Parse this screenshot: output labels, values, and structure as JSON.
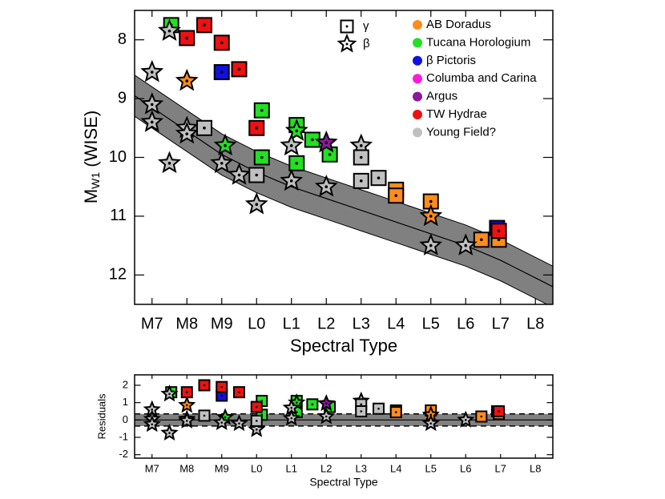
{
  "chart_data": [
    {
      "type": "scatter",
      "xlabel": "Spectral Type",
      "ylabel": {
        "main": "M",
        "sub": "W1",
        "rest": " (WISE)"
      },
      "xlim": [
        6.5,
        18.5
      ],
      "ylim": [
        12.5,
        7.5
      ],
      "xticks": [
        {
          "value": 7,
          "label": "M7"
        },
        {
          "value": 8,
          "label": "M8"
        },
        {
          "value": 9,
          "label": "M9"
        },
        {
          "value": 10,
          "label": "L0"
        },
        {
          "value": 11,
          "label": "L1"
        },
        {
          "value": 12,
          "label": "L2"
        },
        {
          "value": 13,
          "label": "L3"
        },
        {
          "value": 14,
          "label": "L4"
        },
        {
          "value": 15,
          "label": "L5"
        },
        {
          "value": 16,
          "label": "L6"
        },
        {
          "value": 17,
          "label": "L7"
        },
        {
          "value": 18,
          "label": "L8"
        }
      ],
      "yticks": [
        8,
        9,
        10,
        11,
        12
      ],
      "shape_legend": [
        {
          "label": "γ",
          "shape": "square"
        },
        {
          "label": "β",
          "shape": "star"
        }
      ],
      "fit": {
        "x": [
          6.5,
          7,
          8,
          9,
          10,
          11,
          12,
          13,
          14,
          15,
          16,
          17,
          18,
          18.5
        ],
        "values": [
          8.95,
          9.15,
          9.55,
          9.95,
          10.25,
          10.5,
          10.7,
          10.9,
          11.1,
          11.3,
          11.5,
          11.75,
          12.05,
          12.2
        ],
        "halfwidth": 0.35,
        "color": "#808080"
      },
      "series": [
        {
          "name": "AB Doradus",
          "color": "#ff8c1a",
          "x": [
            8,
            14,
            14,
            15,
            15,
            16.45,
            16.95
          ],
          "values": [
            8.7,
            10.55,
            10.65,
            10.75,
            11.0,
            11.4,
            11.4
          ],
          "shapes": [
            "star",
            "square",
            "square",
            "square",
            "star",
            "square",
            "square"
          ]
        },
        {
          "name": "Tucana Horologium",
          "color": "#22e022",
          "x": [
            7.55,
            10.15,
            10.15,
            11.15,
            11.15,
            11.6,
            12.1,
            9.1,
            11.15
          ],
          "values": [
            7.75,
            9.2,
            10.0,
            9.45,
            10.1,
            9.7,
            9.95,
            9.8,
            9.55
          ],
          "shapes": [
            "square",
            "square",
            "square",
            "square",
            "square",
            "square",
            "square",
            "star",
            "star"
          ]
        },
        {
          "name": "β Pictoris",
          "color": "#1010e0",
          "x": [
            9,
            16.9
          ],
          "values": [
            8.55,
            11.2
          ],
          "shapes": [
            "square",
            "square"
          ]
        },
        {
          "name": "Columba and Carina",
          "color": "#ff1adb",
          "x": [],
          "values": [],
          "shapes": []
        },
        {
          "name": "Argus",
          "color": "#8a1a9a",
          "x": [
            12
          ],
          "values": [
            9.75
          ],
          "shapes": [
            "star"
          ]
        },
        {
          "name": "TW Hydrae",
          "color": "#ee1111",
          "x": [
            8,
            8.5,
            9,
            9.5,
            10,
            16.95
          ],
          "values": [
            7.97,
            7.75,
            8.05,
            8.5,
            9.5,
            11.25
          ],
          "shapes": [
            "square",
            "square",
            "square",
            "square",
            "square",
            "square"
          ]
        },
        {
          "name": "Young Field?",
          "color": "#c0c0c0",
          "x": [
            7,
            7,
            7,
            7.5,
            7.5,
            8,
            8,
            9,
            9.5,
            10,
            11,
            11,
            12,
            13,
            15,
            16,
            8.5,
            10,
            13,
            13,
            13.5
          ],
          "values": [
            8.55,
            9.1,
            9.4,
            7.85,
            10.1,
            9.5,
            9.6,
            10.1,
            10.3,
            10.8,
            9.8,
            10.4,
            10.5,
            9.8,
            11.5,
            11.5,
            9.5,
            10.3,
            10.0,
            10.4,
            10.35
          ],
          "shapes": [
            "star",
            "star",
            "star",
            "star",
            "star",
            "star",
            "star",
            "star",
            "star",
            "star",
            "star",
            "star",
            "star",
            "star",
            "star",
            "star",
            "square",
            "square",
            "square",
            "square",
            "square"
          ]
        }
      ]
    },
    {
      "type": "scatter",
      "xlabel": "Spectral Type",
      "ylabel": "Residuals",
      "xlim": [
        6.5,
        18.5
      ],
      "ylim": [
        -2.2,
        2.6
      ],
      "xticks": [
        {
          "value": 7,
          "label": "M7"
        },
        {
          "value": 8,
          "label": "M8"
        },
        {
          "value": 9,
          "label": "M9"
        },
        {
          "value": 10,
          "label": "L0"
        },
        {
          "value": 11,
          "label": "L1"
        },
        {
          "value": 12,
          "label": "L2"
        },
        {
          "value": 13,
          "label": "L3"
        },
        {
          "value": 14,
          "label": "L4"
        },
        {
          "value": 15,
          "label": "L5"
        },
        {
          "value": 16,
          "label": "L6"
        },
        {
          "value": 17,
          "label": "L7"
        },
        {
          "value": 18,
          "label": "L8"
        }
      ],
      "yticks": [
        -2,
        -1,
        0,
        1,
        2
      ],
      "band": {
        "center": 0,
        "halfwidth": 0.35,
        "color": "#808080"
      },
      "series": [
        {
          "color": "#ff8c1a",
          "x": [
            8,
            14,
            14,
            15,
            15,
            16.45,
            16.95
          ],
          "values": [
            0.85,
            0.55,
            0.45,
            0.55,
            0.3,
            0.2,
            0.35
          ],
          "shapes": [
            "star",
            "square",
            "square",
            "square",
            "star",
            "square",
            "square"
          ]
        },
        {
          "color": "#22e022",
          "x": [
            7.55,
            10.15,
            10.15,
            11.15,
            11.15,
            11.6,
            12.1,
            9.1,
            11.15
          ],
          "values": [
            1.6,
            1.1,
            0.3,
            1.1,
            0.45,
            0.9,
            0.75,
            0.15,
            1.0
          ],
          "shapes": [
            "square",
            "square",
            "square",
            "square",
            "square",
            "square",
            "square",
            "star",
            "star"
          ]
        },
        {
          "color": "#1010e0",
          "x": [
            9,
            16.9
          ],
          "values": [
            1.4,
            0.5
          ],
          "shapes": [
            "square",
            "square"
          ]
        },
        {
          "color": "#8a1a9a",
          "x": [
            12
          ],
          "values": [
            0.95
          ],
          "shapes": [
            "star"
          ]
        },
        {
          "color": "#ee1111",
          "x": [
            8,
            8.5,
            9,
            9.5,
            10,
            16.95
          ],
          "values": [
            1.6,
            2.0,
            1.9,
            1.6,
            0.75,
            0.5
          ],
          "shapes": [
            "square",
            "square",
            "square",
            "square",
            "square",
            "square"
          ]
        },
        {
          "color": "#c0c0c0",
          "x": [
            7,
            7,
            7,
            7.5,
            7.5,
            8,
            8,
            9,
            9.5,
            10,
            11,
            11,
            12,
            13,
            15,
            16,
            8.5,
            10,
            13,
            13,
            13.5
          ],
          "values": [
            0.6,
            0.05,
            -0.25,
            1.5,
            -0.75,
            0.05,
            -0.05,
            -0.15,
            -0.2,
            -0.55,
            0.7,
            0.1,
            0.2,
            1.1,
            -0.2,
            0.0,
            0.25,
            -0.05,
            0.9,
            0.5,
            0.65
          ],
          "shapes": [
            "star",
            "star",
            "star",
            "star",
            "star",
            "star",
            "star",
            "star",
            "star",
            "star",
            "star",
            "star",
            "star",
            "star",
            "star",
            "star",
            "square",
            "square",
            "square",
            "square",
            "square"
          ]
        }
      ]
    }
  ]
}
